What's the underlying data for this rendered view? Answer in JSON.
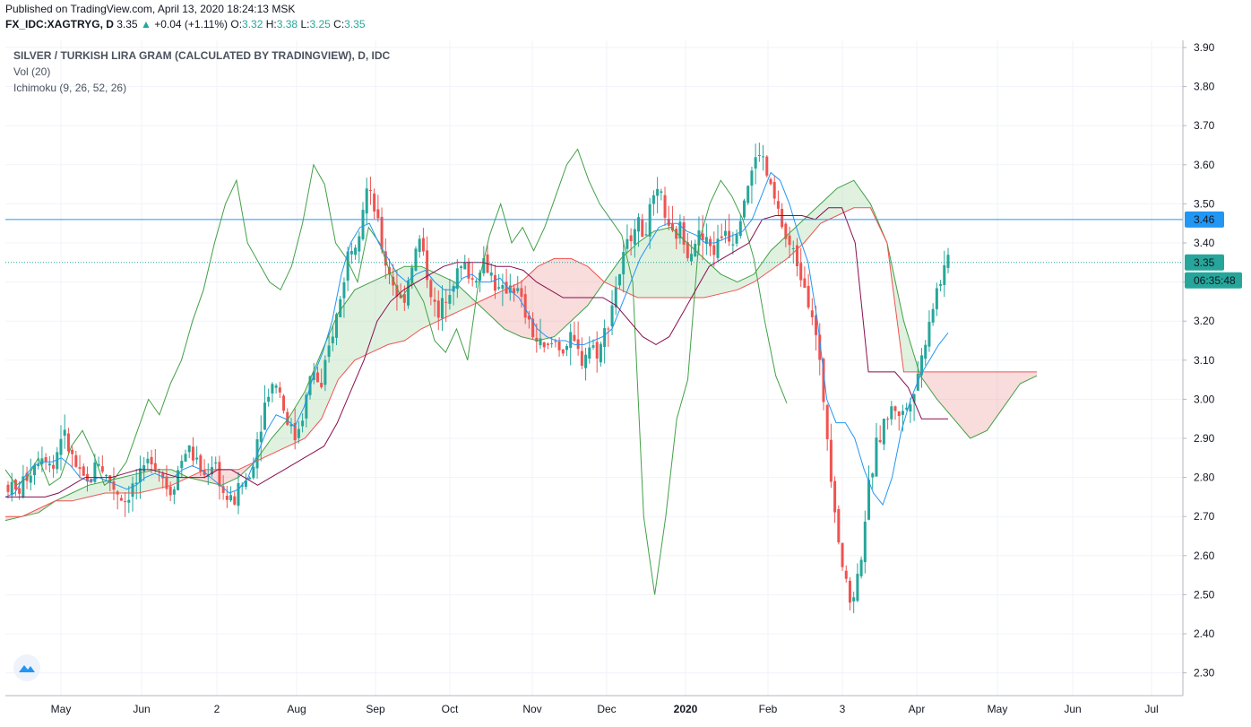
{
  "header": {
    "published": "Published on TradingView.com, April 13, 2020 18:24:13 MSK",
    "symbol": "FX_IDC:XAGTRYG, D",
    "last": "3.35",
    "arrow": "▲",
    "change": "+0.04 (+1.11%)",
    "o_label": "O:",
    "o": "3.32",
    "h_label": "H:",
    "h": "3.38",
    "l_label": "L:",
    "l": "3.25",
    "c_label": "C:",
    "c": "3.35"
  },
  "legend": {
    "title": "SILVER / TURKISH LIRA GRAM (CALCULATED BY TRADINGVIEW), D, IDC",
    "vol": "Vol (20)",
    "ichimoku": "Ichimoku (9, 26, 52, 26)"
  },
  "colors": {
    "up": "#26a69a",
    "down": "#ef5350",
    "tenkan": "#2196f3",
    "kijun": "#880e4f",
    "chikou": "#43a047",
    "span_a": "#43a047",
    "span_b": "#ef5350",
    "cloud_up": "#a5d6a7",
    "cloud_down": "#ef9a9a",
    "line_346": "#2196f3",
    "price_tag": "#26a69a",
    "grid": "#f0f3fa",
    "axis": "#e0e3eb"
  },
  "chart_data": {
    "type": "candlestick",
    "y_range": [
      2.27,
      3.92
    ],
    "y_ticks": [
      "3.90",
      "3.80",
      "3.70",
      "3.60",
      "3.50",
      "3.40",
      "3.30",
      "3.20",
      "3.10",
      "3.00",
      "2.90",
      "2.80",
      "2.70",
      "2.60",
      "2.50",
      "2.40",
      "2.30"
    ],
    "x_labels": [
      "May",
      "Jun",
      "2",
      "Aug",
      "Sep",
      "Oct",
      "Nov",
      "Dec",
      "2020",
      "Feb",
      "3",
      "Apr",
      "May",
      "Jun",
      "Jul"
    ],
    "x_label_bold": "2020",
    "hline_value": 3.46,
    "hline_label": "3.46",
    "last_price": 3.35,
    "last_price_label": "3.35",
    "countdown": "06:35:48",
    "close_path": [
      2.78,
      2.76,
      2.8,
      2.84,
      2.87,
      2.82,
      2.92,
      2.86,
      2.8,
      2.78,
      2.85,
      2.8,
      2.77,
      2.74,
      2.78,
      2.8,
      2.86,
      2.82,
      2.76,
      2.82,
      2.88,
      2.84,
      2.8,
      2.85,
      2.76,
      2.73,
      2.78,
      2.8,
      2.92,
      3.02,
      3.05,
      2.96,
      2.9,
      2.97,
      3.08,
      3.02,
      3.15,
      3.24,
      3.38,
      3.42,
      3.54,
      3.48,
      3.36,
      3.3,
      3.24,
      3.34,
      3.41,
      3.3,
      3.2,
      3.28,
      3.32,
      3.34,
      3.3,
      3.36,
      3.32,
      3.26,
      3.3,
      3.27,
      3.2,
      3.15,
      3.12,
      3.15,
      3.13,
      3.15,
      3.1,
      3.14,
      3.12,
      3.2,
      3.3,
      3.38,
      3.46,
      3.42,
      3.5,
      3.52,
      3.4,
      3.44,
      3.38,
      3.42,
      3.4,
      3.38,
      3.44,
      3.41,
      3.5,
      3.58,
      3.64,
      3.55,
      3.48,
      3.4,
      3.36,
      3.3,
      3.2,
      3.02,
      2.8,
      2.6,
      2.48,
      2.55,
      2.75,
      2.88,
      2.95,
      2.98,
      2.96,
      3.02,
      3.1,
      3.22,
      3.3,
      3.35
    ],
    "tenkan": [
      2.75,
      2.76,
      2.8,
      2.83,
      2.84,
      2.84,
      2.85,
      2.83,
      2.8,
      2.79,
      2.8,
      2.79,
      2.78,
      2.77,
      2.78,
      2.8,
      2.81,
      2.8,
      2.8,
      2.82,
      2.83,
      2.82,
      2.8,
      2.78,
      2.76,
      2.77,
      2.8,
      2.86,
      2.92,
      2.96,
      2.95,
      2.93,
      2.98,
      3.06,
      3.12,
      3.2,
      3.32,
      3.4,
      3.44,
      3.45,
      3.4,
      3.36,
      3.32,
      3.3,
      3.32,
      3.33,
      3.3,
      3.28,
      3.28,
      3.31,
      3.32,
      3.3,
      3.3,
      3.31,
      3.28,
      3.26,
      3.22,
      3.18,
      3.16,
      3.15,
      3.15,
      3.14,
      3.14,
      3.15,
      3.16,
      3.18,
      3.24,
      3.3,
      3.36,
      3.4,
      3.44,
      3.45,
      3.45,
      3.43,
      3.42,
      3.4,
      3.4,
      3.41,
      3.42,
      3.43,
      3.46,
      3.52,
      3.58,
      3.56,
      3.5,
      3.42,
      3.35,
      3.2,
      3.0,
      2.94,
      2.94,
      2.9,
      2.82,
      2.76,
      2.73,
      2.8,
      2.92,
      3.0,
      3.06,
      3.1,
      3.14,
      3.17
    ],
    "kijun": [
      2.75,
      2.75,
      2.75,
      2.75,
      2.76,
      2.78,
      2.8,
      2.8,
      2.8,
      2.81,
      2.82,
      2.82,
      2.81,
      2.8,
      2.8,
      2.8,
      2.82,
      2.82,
      2.8,
      2.78,
      2.8,
      2.82,
      2.84,
      2.86,
      2.88,
      2.94,
      3.02,
      3.1,
      3.2,
      3.25,
      3.28,
      3.3,
      3.32,
      3.34,
      3.35,
      3.35,
      3.35,
      3.34,
      3.34,
      3.33,
      3.3,
      3.28,
      3.26,
      3.26,
      3.26,
      3.26,
      3.24,
      3.2,
      3.16,
      3.14,
      3.16,
      3.22,
      3.28,
      3.34,
      3.36,
      3.38,
      3.4,
      3.46,
      3.47,
      3.47,
      3.47,
      3.46,
      3.49,
      3.49,
      3.4,
      3.07,
      3.07,
      3.07,
      3.03,
      2.95,
      2.95,
      2.95
    ],
    "chikou": [
      2.82,
      2.78,
      2.8,
      2.85,
      2.78,
      2.8,
      2.88,
      2.92,
      2.86,
      2.78,
      2.8,
      2.84,
      2.92,
      3.0,
      2.96,
      3.04,
      3.1,
      3.2,
      3.28,
      3.4,
      3.5,
      3.56,
      3.4,
      3.35,
      3.3,
      3.28,
      3.34,
      3.45,
      3.6,
      3.55,
      3.4,
      3.36,
      3.3,
      3.44,
      3.4,
      3.32,
      3.26,
      3.3,
      3.25,
      3.15,
      3.12,
      3.18,
      3.1,
      3.3,
      3.42,
      3.5,
      3.4,
      3.44,
      3.38,
      3.44,
      3.52,
      3.6,
      3.64,
      3.56,
      3.5,
      3.46,
      3.42,
      3.3,
      2.7,
      2.5,
      2.7,
      2.95,
      3.05,
      3.4,
      3.5,
      3.56,
      3.52,
      3.46,
      3.36,
      3.2,
      3.06,
      2.99
    ],
    "span_a": [
      2.69,
      2.7,
      2.71,
      2.74,
      2.76,
      2.78,
      2.79,
      2.8,
      2.81,
      2.82,
      2.82,
      2.8,
      2.79,
      2.78,
      2.8,
      2.84,
      2.9,
      2.95,
      3.02,
      3.12,
      3.22,
      3.28,
      3.3,
      3.32,
      3.34,
      3.34,
      3.32,
      3.3,
      3.26,
      3.22,
      3.18,
      3.16,
      3.15,
      3.16,
      3.2,
      3.24,
      3.3,
      3.36,
      3.4,
      3.43,
      3.44,
      3.4,
      3.36,
      3.32,
      3.3,
      3.32,
      3.38,
      3.42,
      3.46,
      3.5,
      3.54,
      3.56,
      3.5,
      3.4,
      3.2,
      3.06,
      3.0,
      2.95,
      2.9,
      2.92,
      2.98,
      3.04,
      3.06
    ],
    "span_b": [
      2.7,
      2.7,
      2.72,
      2.74,
      2.74,
      2.75,
      2.76,
      2.76,
      2.76,
      2.77,
      2.78,
      2.8,
      2.82,
      2.82,
      2.82,
      2.84,
      2.86,
      2.88,
      2.9,
      2.95,
      3.05,
      3.1,
      3.12,
      3.14,
      3.15,
      3.18,
      3.2,
      3.22,
      3.24,
      3.26,
      3.28,
      3.3,
      3.34,
      3.36,
      3.36,
      3.34,
      3.3,
      3.28,
      3.26,
      3.26,
      3.26,
      3.26,
      3.26,
      3.27,
      3.28,
      3.3,
      3.33,
      3.36,
      3.4,
      3.45,
      3.47,
      3.49,
      3.49,
      3.4,
      3.07,
      3.07,
      3.07,
      3.07,
      3.07,
      3.07,
      3.07,
      3.07,
      3.07
    ]
  }
}
